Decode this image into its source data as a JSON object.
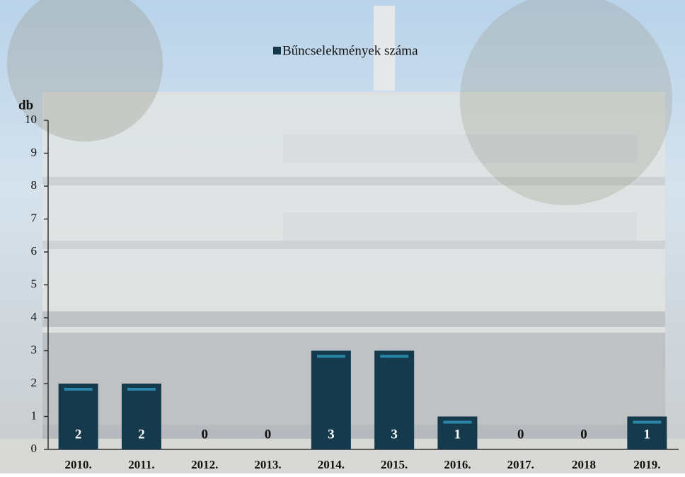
{
  "chart_data": {
    "type": "bar",
    "legend_label": "Bűncselekmények száma",
    "y_label": "db",
    "categories": [
      "2010.",
      "2011.",
      "2012.",
      "2013.",
      "2014.",
      "2015.",
      "2016.",
      "2017.",
      "2018",
      "2019."
    ],
    "values": [
      2,
      2,
      0,
      0,
      3,
      3,
      1,
      0,
      0,
      1
    ],
    "color": "#143a4c",
    "ylim": [
      0,
      10
    ],
    "yticks": [
      0,
      1,
      2,
      3,
      4,
      5,
      6,
      7,
      8,
      9,
      10
    ],
    "grid": false
  }
}
